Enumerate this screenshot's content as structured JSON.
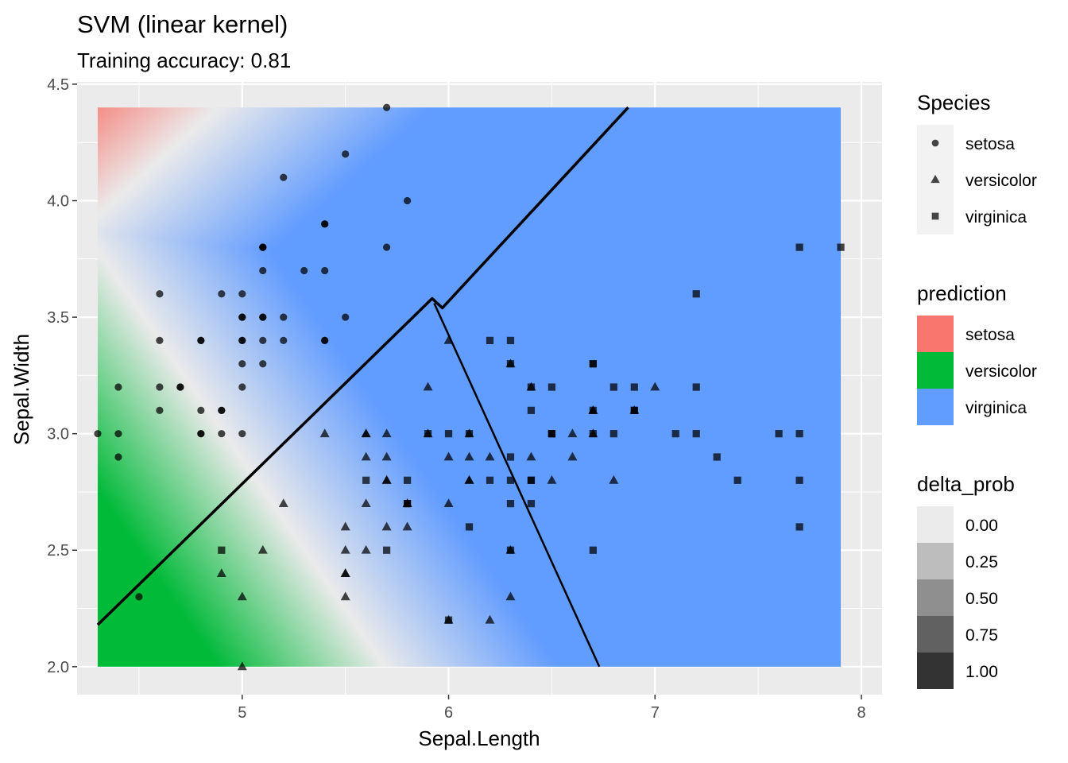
{
  "chart_data": {
    "type": "scatter",
    "title": "SVM (linear kernel)",
    "subtitle": "Training accuracy: 0.81",
    "xlabel": "Sepal.Length",
    "ylabel": "Sepal.Width",
    "xlim": [
      4.2,
      8.1
    ],
    "ylim": [
      1.88,
      4.51
    ],
    "xticks": [
      5,
      6,
      7,
      8
    ],
    "yticks": [
      2.0,
      2.5,
      3.0,
      3.5,
      4.0,
      4.5
    ],
    "xtick_labels": [
      "5",
      "6",
      "7",
      "8"
    ],
    "ytick_labels": [
      "2.0",
      "2.5",
      "3.0",
      "3.5",
      "4.0",
      "4.5"
    ],
    "grid": true,
    "legend_position": "right",
    "background_grid": {
      "x_range": [
        4.3,
        7.9
      ],
      "y_range": [
        2.0,
        4.4
      ]
    },
    "colors": {
      "setosa": "#F8766D",
      "versicolor": "#00BA38",
      "virginica": "#619CFF",
      "panel": "#EBEBEB",
      "point": "#000000"
    },
    "decision_boundary": {
      "upper": [
        [
          4.3,
          2.18
        ],
        [
          5.92,
          3.58
        ],
        [
          5.97,
          3.54
        ],
        [
          6.87,
          4.4
        ]
      ],
      "lower": [
        [
          5.93,
          3.56
        ],
        [
          6.73,
          2.0
        ]
      ]
    },
    "series": [
      {
        "name": "setosa",
        "shape": "circle",
        "points": [
          [
            5.1,
            3.5
          ],
          [
            4.9,
            3.0
          ],
          [
            4.7,
            3.2
          ],
          [
            4.6,
            3.1
          ],
          [
            5.0,
            3.6
          ],
          [
            5.4,
            3.9
          ],
          [
            4.6,
            3.4
          ],
          [
            5.0,
            3.4
          ],
          [
            4.4,
            2.9
          ],
          [
            4.9,
            3.1
          ],
          [
            5.4,
            3.7
          ],
          [
            4.8,
            3.4
          ],
          [
            4.8,
            3.0
          ],
          [
            4.3,
            3.0
          ],
          [
            5.8,
            4.0
          ],
          [
            5.7,
            4.4
          ],
          [
            5.4,
            3.9
          ],
          [
            5.1,
            3.5
          ],
          [
            5.7,
            3.8
          ],
          [
            5.1,
            3.8
          ],
          [
            5.4,
            3.4
          ],
          [
            5.1,
            3.7
          ],
          [
            4.6,
            3.6
          ],
          [
            5.1,
            3.3
          ],
          [
            4.8,
            3.4
          ],
          [
            5.0,
            3.0
          ],
          [
            5.0,
            3.4
          ],
          [
            5.2,
            3.5
          ],
          [
            5.2,
            3.4
          ],
          [
            4.7,
            3.2
          ],
          [
            4.8,
            3.1
          ],
          [
            5.4,
            3.4
          ],
          [
            5.2,
            4.1
          ],
          [
            5.5,
            4.2
          ],
          [
            4.9,
            3.1
          ],
          [
            5.0,
            3.2
          ],
          [
            5.5,
            3.5
          ],
          [
            4.9,
            3.6
          ],
          [
            4.4,
            3.0
          ],
          [
            5.1,
            3.4
          ],
          [
            5.0,
            3.5
          ],
          [
            4.5,
            2.3
          ],
          [
            4.4,
            3.2
          ],
          [
            5.0,
            3.5
          ],
          [
            5.1,
            3.8
          ],
          [
            4.8,
            3.0
          ],
          [
            5.1,
            3.8
          ],
          [
            4.6,
            3.2
          ],
          [
            5.3,
            3.7
          ],
          [
            5.0,
            3.3
          ]
        ]
      },
      {
        "name": "versicolor",
        "shape": "triangle",
        "points": [
          [
            7.0,
            3.2
          ],
          [
            6.4,
            3.2
          ],
          [
            6.9,
            3.1
          ],
          [
            5.5,
            2.3
          ],
          [
            6.5,
            2.8
          ],
          [
            5.7,
            2.8
          ],
          [
            6.3,
            3.3
          ],
          [
            4.9,
            2.4
          ],
          [
            6.6,
            2.9
          ],
          [
            5.2,
            2.7
          ],
          [
            5.0,
            2.0
          ],
          [
            5.9,
            3.0
          ],
          [
            6.0,
            2.2
          ],
          [
            6.1,
            2.9
          ],
          [
            5.6,
            2.9
          ],
          [
            6.7,
            3.1
          ],
          [
            5.6,
            3.0
          ],
          [
            5.8,
            2.7
          ],
          [
            6.2,
            2.2
          ],
          [
            5.6,
            2.5
          ],
          [
            5.9,
            3.2
          ],
          [
            6.1,
            2.8
          ],
          [
            6.3,
            2.5
          ],
          [
            6.1,
            2.8
          ],
          [
            6.4,
            2.9
          ],
          [
            6.6,
            3.0
          ],
          [
            6.8,
            2.8
          ],
          [
            6.7,
            3.0
          ],
          [
            6.0,
            2.9
          ],
          [
            5.7,
            2.6
          ],
          [
            5.5,
            2.4
          ],
          [
            5.5,
            2.4
          ],
          [
            5.8,
            2.7
          ],
          [
            6.0,
            2.7
          ],
          [
            5.4,
            3.0
          ],
          [
            6.0,
            3.4
          ],
          [
            6.7,
            3.1
          ],
          [
            6.3,
            2.3
          ],
          [
            5.6,
            3.0
          ],
          [
            5.5,
            2.5
          ],
          [
            5.5,
            2.6
          ],
          [
            6.1,
            3.0
          ],
          [
            5.8,
            2.6
          ],
          [
            5.0,
            2.3
          ],
          [
            5.6,
            2.7
          ],
          [
            5.7,
            3.0
          ],
          [
            5.7,
            2.9
          ],
          [
            6.2,
            2.9
          ],
          [
            5.1,
            2.5
          ],
          [
            5.7,
            2.8
          ]
        ]
      },
      {
        "name": "virginica",
        "shape": "square",
        "points": [
          [
            6.3,
            3.3
          ],
          [
            5.8,
            2.7
          ],
          [
            7.1,
            3.0
          ],
          [
            6.3,
            2.9
          ],
          [
            6.5,
            3.0
          ],
          [
            7.6,
            3.0
          ],
          [
            4.9,
            2.5
          ],
          [
            7.3,
            2.9
          ],
          [
            6.7,
            2.5
          ],
          [
            7.2,
            3.6
          ],
          [
            6.5,
            3.2
          ],
          [
            6.4,
            2.7
          ],
          [
            6.8,
            3.0
          ],
          [
            5.7,
            2.5
          ],
          [
            5.8,
            2.8
          ],
          [
            6.4,
            3.2
          ],
          [
            6.5,
            3.0
          ],
          [
            7.7,
            3.8
          ],
          [
            7.7,
            2.6
          ],
          [
            6.0,
            2.2
          ],
          [
            6.9,
            3.2
          ],
          [
            5.6,
            2.8
          ],
          [
            7.7,
            2.8
          ],
          [
            6.3,
            2.7
          ],
          [
            6.7,
            3.3
          ],
          [
            7.2,
            3.2
          ],
          [
            6.2,
            2.8
          ],
          [
            6.1,
            3.0
          ],
          [
            6.4,
            2.8
          ],
          [
            7.2,
            3.0
          ],
          [
            7.4,
            2.8
          ],
          [
            7.9,
            3.8
          ],
          [
            6.4,
            2.8
          ],
          [
            6.3,
            2.8
          ],
          [
            6.1,
            2.6
          ],
          [
            7.7,
            3.0
          ],
          [
            6.3,
            3.4
          ],
          [
            6.4,
            3.1
          ],
          [
            6.0,
            3.0
          ],
          [
            6.9,
            3.1
          ],
          [
            6.7,
            3.1
          ],
          [
            6.9,
            3.1
          ],
          [
            5.8,
            2.7
          ],
          [
            6.8,
            3.2
          ],
          [
            6.7,
            3.3
          ],
          [
            6.7,
            3.0
          ],
          [
            6.3,
            2.5
          ],
          [
            6.5,
            3.0
          ],
          [
            6.2,
            3.4
          ],
          [
            5.9,
            3.0
          ]
        ]
      }
    ],
    "legends": [
      {
        "title": "Species",
        "items": [
          {
            "label": "setosa",
            "shape": "circle"
          },
          {
            "label": "versicolor",
            "shape": "triangle"
          },
          {
            "label": "virginica",
            "shape": "square"
          }
        ]
      },
      {
        "title": "prediction",
        "items": [
          {
            "label": "setosa",
            "color": "#F8766D"
          },
          {
            "label": "versicolor",
            "color": "#00BA38"
          },
          {
            "label": "virginica",
            "color": "#619CFF"
          }
        ]
      },
      {
        "title": "delta_prob",
        "items": [
          {
            "label": "0.00",
            "level": 0.0
          },
          {
            "label": "0.25",
            "level": 0.25
          },
          {
            "label": "0.50",
            "level": 0.5
          },
          {
            "label": "0.75",
            "level": 0.75
          },
          {
            "label": "1.00",
            "level": 1.0
          }
        ]
      }
    ]
  }
}
